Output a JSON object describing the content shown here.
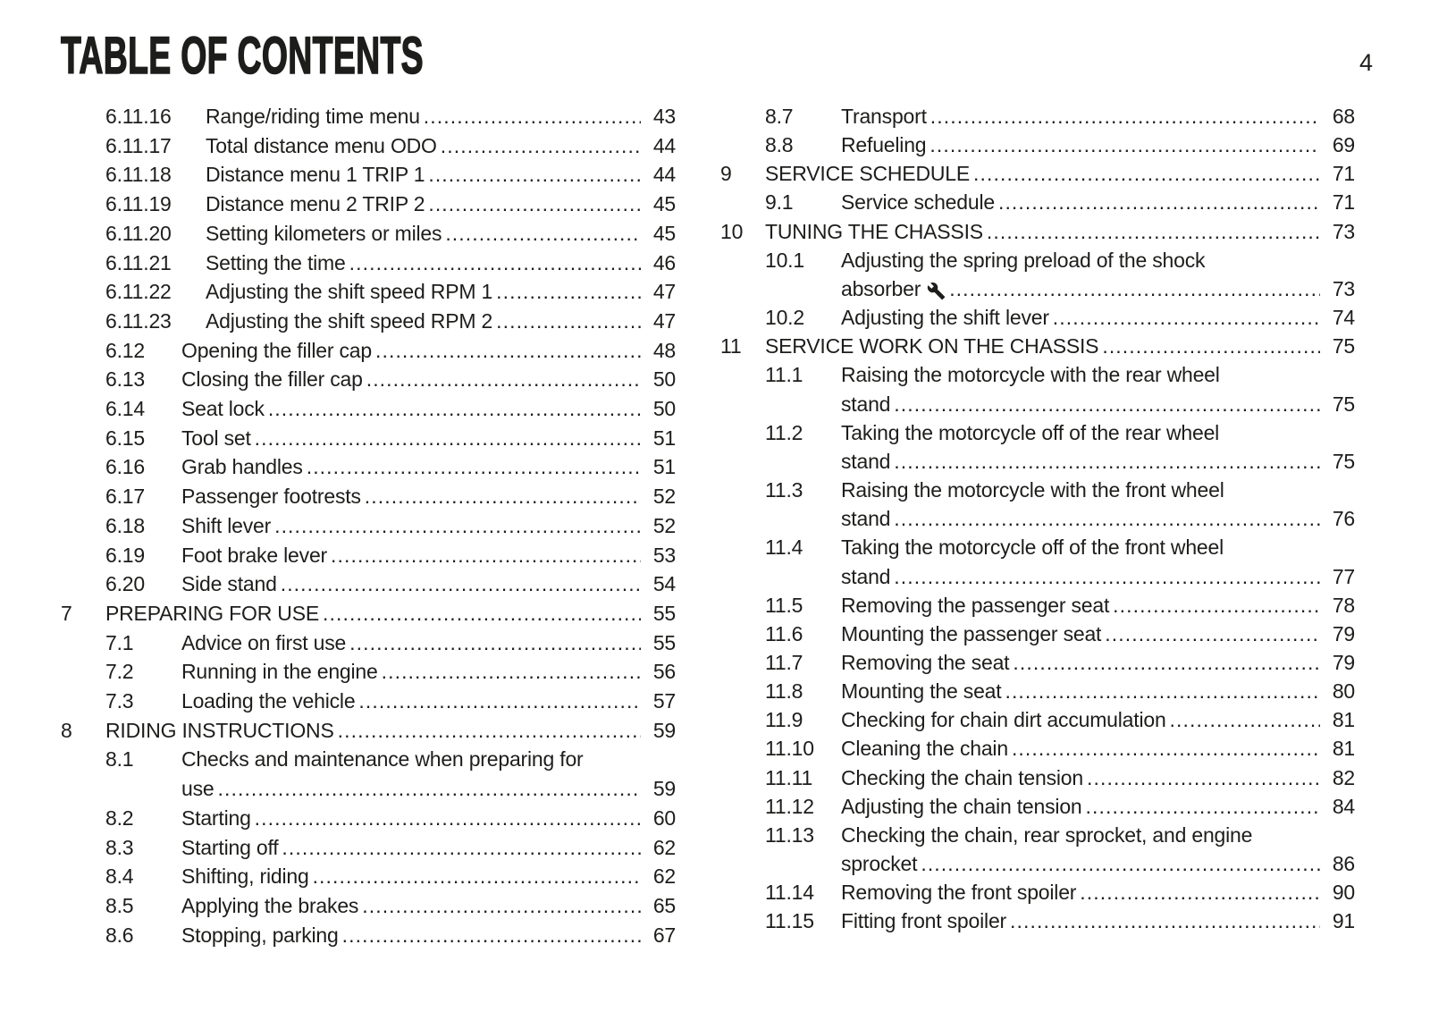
{
  "header": {
    "title": "TABLE OF CONTENTS",
    "page_number": "4"
  },
  "colors": {
    "text": "#1d1d1b",
    "background": "#ffffff"
  },
  "icons": {
    "wrench-icon": "wrench"
  },
  "toc": {
    "left_column": [
      {
        "num": "6.11.16",
        "level": 3,
        "lines": [
          "Range/riding time menu"
        ],
        "page": "43"
      },
      {
        "num": "6.11.17",
        "level": 3,
        "lines": [
          "Total distance menu ODO"
        ],
        "page": "44"
      },
      {
        "num": "6.11.18",
        "level": 3,
        "lines": [
          "Distance menu 1 TRIP 1"
        ],
        "page": "44"
      },
      {
        "num": "6.11.19",
        "level": 3,
        "lines": [
          "Distance menu 2 TRIP 2"
        ],
        "page": "45"
      },
      {
        "num": "6.11.20",
        "level": 3,
        "lines": [
          "Setting kilometers or miles"
        ],
        "page": "45"
      },
      {
        "num": "6.11.21",
        "level": 3,
        "lines": [
          "Setting the time"
        ],
        "page": "46"
      },
      {
        "num": "6.11.22",
        "level": 3,
        "lines": [
          "Adjusting the shift speed RPM 1"
        ],
        "page": "47"
      },
      {
        "num": "6.11.23",
        "level": 3,
        "lines": [
          "Adjusting the shift speed RPM 2"
        ],
        "page": "47"
      },
      {
        "num": "6.12",
        "level": 2,
        "lines": [
          "Opening the filler cap"
        ],
        "page": "48"
      },
      {
        "num": "6.13",
        "level": 2,
        "lines": [
          "Closing the filler cap"
        ],
        "page": "50"
      },
      {
        "num": "6.14",
        "level": 2,
        "lines": [
          "Seat lock"
        ],
        "page": "50"
      },
      {
        "num": "6.15",
        "level": 2,
        "lines": [
          "Tool set"
        ],
        "page": "51"
      },
      {
        "num": "6.16",
        "level": 2,
        "lines": [
          "Grab handles"
        ],
        "page": "51"
      },
      {
        "num": "6.17",
        "level": 2,
        "lines": [
          "Passenger footrests"
        ],
        "page": "52"
      },
      {
        "num": "6.18",
        "level": 2,
        "lines": [
          "Shift lever"
        ],
        "page": "52"
      },
      {
        "num": "6.19",
        "level": 2,
        "lines": [
          "Foot brake lever"
        ],
        "page": "53"
      },
      {
        "num": "6.20",
        "level": 2,
        "lines": [
          "Side stand"
        ],
        "page": "54"
      },
      {
        "num": "7",
        "level": 1,
        "lines": [
          "PREPARING FOR USE"
        ],
        "page": "55"
      },
      {
        "num": "7.1",
        "level": 2,
        "lines": [
          "Advice on first use"
        ],
        "page": "55"
      },
      {
        "num": "7.2",
        "level": 2,
        "lines": [
          "Running in the engine"
        ],
        "page": "56"
      },
      {
        "num": "7.3",
        "level": 2,
        "lines": [
          "Loading the vehicle"
        ],
        "page": "57"
      },
      {
        "num": "8",
        "level": 1,
        "lines": [
          "RIDING INSTRUCTIONS"
        ],
        "page": "59"
      },
      {
        "num": "8.1",
        "level": 2,
        "lines": [
          "Checks and maintenance when preparing for",
          "use"
        ],
        "page": "59"
      },
      {
        "num": "8.2",
        "level": 2,
        "lines": [
          "Starting"
        ],
        "page": "60"
      },
      {
        "num": "8.3",
        "level": 2,
        "lines": [
          "Starting off"
        ],
        "page": "62"
      },
      {
        "num": "8.4",
        "level": 2,
        "lines": [
          "Shifting, riding"
        ],
        "page": "62"
      },
      {
        "num": "8.5",
        "level": 2,
        "lines": [
          "Applying the brakes"
        ],
        "page": "65"
      },
      {
        "num": "8.6",
        "level": 2,
        "lines": [
          "Stopping, parking"
        ],
        "page": "67"
      }
    ],
    "right_column": [
      {
        "num": "8.7",
        "level": 2,
        "lines": [
          "Transport"
        ],
        "page": "68"
      },
      {
        "num": "8.8",
        "level": 2,
        "lines": [
          "Refueling"
        ],
        "page": "69"
      },
      {
        "num": "9",
        "level": 1,
        "lines": [
          "SERVICE SCHEDULE"
        ],
        "page": "71"
      },
      {
        "num": "9.1",
        "level": 2,
        "lines": [
          "Service schedule"
        ],
        "page": "71"
      },
      {
        "num": "10",
        "level": 1,
        "lines": [
          "TUNING THE CHASSIS"
        ],
        "page": "73"
      },
      {
        "num": "10.1",
        "level": 2,
        "lines": [
          "Adjusting the spring preload of the shock",
          "absorber"
        ],
        "icon": "wrench-icon",
        "page": "73"
      },
      {
        "num": "10.2",
        "level": 2,
        "lines": [
          "Adjusting the shift lever"
        ],
        "page": "74"
      },
      {
        "num": "11",
        "level": 1,
        "lines": [
          "SERVICE WORK ON THE CHASSIS"
        ],
        "page": "75"
      },
      {
        "num": "11.1",
        "level": 2,
        "lines": [
          "Raising the motorcycle with the rear wheel",
          "stand"
        ],
        "page": "75"
      },
      {
        "num": "11.2",
        "level": 2,
        "lines": [
          "Taking the motorcycle off of the rear wheel",
          "stand"
        ],
        "page": "75"
      },
      {
        "num": "11.3",
        "level": 2,
        "lines": [
          "Raising the motorcycle with the front wheel",
          "stand"
        ],
        "page": "76"
      },
      {
        "num": "11.4",
        "level": 2,
        "lines": [
          "Taking the motorcycle off of the front wheel",
          "stand"
        ],
        "page": "77"
      },
      {
        "num": "11.5",
        "level": 2,
        "lines": [
          "Removing the passenger seat"
        ],
        "page": "78"
      },
      {
        "num": "11.6",
        "level": 2,
        "lines": [
          "Mounting the passenger seat"
        ],
        "page": "79"
      },
      {
        "num": "11.7",
        "level": 2,
        "lines": [
          "Removing the seat"
        ],
        "page": "79"
      },
      {
        "num": "11.8",
        "level": 2,
        "lines": [
          "Mounting the seat"
        ],
        "page": "80"
      },
      {
        "num": "11.9",
        "level": 2,
        "lines": [
          "Checking for chain dirt accumulation"
        ],
        "page": "81"
      },
      {
        "num": "11.10",
        "level": 2,
        "lines": [
          "Cleaning the chain"
        ],
        "page": "81"
      },
      {
        "num": "11.11",
        "level": 2,
        "lines": [
          "Checking the chain tension"
        ],
        "page": "82"
      },
      {
        "num": "11.12",
        "level": 2,
        "lines": [
          "Adjusting the chain tension"
        ],
        "page": "84"
      },
      {
        "num": "11.13",
        "level": 2,
        "lines": [
          "Checking the chain, rear sprocket, and engine",
          "sprocket"
        ],
        "page": "86"
      },
      {
        "num": "11.14",
        "level": 2,
        "lines": [
          "Removing the front spoiler"
        ],
        "page": "90"
      },
      {
        "num": "11.15",
        "level": 2,
        "lines": [
          "Fitting front spoiler"
        ],
        "page": "91"
      }
    ]
  }
}
